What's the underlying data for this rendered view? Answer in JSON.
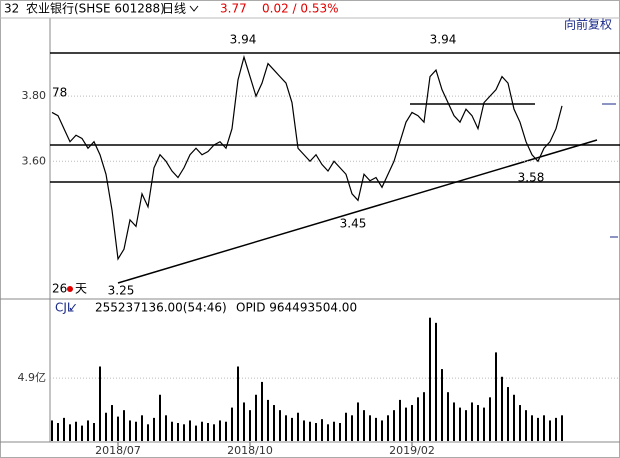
{
  "header": {
    "code": "32",
    "name": "农业银行(SHSE 601288)",
    "period": "日线",
    "price": "3.77",
    "change": "0.02 / 0.53%",
    "adjust": "向前复权"
  },
  "chart_data": [
    {
      "type": "line",
      "color": "#000000",
      "categories": [
        null,
        null,
        null,
        null,
        null,
        null,
        null,
        null,
        null,
        null,
        null,
        "2018/07",
        null,
        null,
        null,
        null,
        null,
        null,
        null,
        null,
        null,
        null,
        null,
        null,
        null,
        null,
        null,
        null,
        null,
        null,
        null,
        null,
        null,
        "2018/10",
        null,
        null,
        null,
        null,
        null,
        null,
        null,
        null,
        null,
        null,
        null,
        null,
        null,
        null,
        null,
        null,
        null,
        null,
        null,
        null,
        null,
        null,
        null,
        null,
        null,
        null,
        "2019/02",
        null,
        null,
        null,
        null,
        null,
        null,
        null,
        null,
        null,
        null,
        null,
        null,
        null,
        null,
        null,
        null,
        null,
        null,
        null,
        null,
        null,
        null,
        null,
        null,
        null
      ],
      "values": [
        3.75,
        3.74,
        3.7,
        3.66,
        3.68,
        3.67,
        3.64,
        3.66,
        3.62,
        3.56,
        3.45,
        3.3,
        3.33,
        3.42,
        3.4,
        3.5,
        3.46,
        3.58,
        3.62,
        3.6,
        3.57,
        3.55,
        3.58,
        3.62,
        3.64,
        3.62,
        3.63,
        3.65,
        3.66,
        3.64,
        3.7,
        3.85,
        3.92,
        3.86,
        3.8,
        3.84,
        3.9,
        3.88,
        3.86,
        3.84,
        3.78,
        3.64,
        3.62,
        3.6,
        3.62,
        3.59,
        3.57,
        3.6,
        3.58,
        3.56,
        3.5,
        3.48,
        3.56,
        3.54,
        3.55,
        3.52,
        3.56,
        3.6,
        3.66,
        3.72,
        3.75,
        3.74,
        3.72,
        3.86,
        3.88,
        3.82,
        3.78,
        3.74,
        3.72,
        3.76,
        3.74,
        3.7,
        3.78,
        3.8,
        3.82,
        3.86,
        3.84,
        3.76,
        3.72,
        3.66,
        3.62,
        3.6,
        3.64,
        3.66,
        3.7,
        3.77
      ],
      "ylim": [
        3.18,
        4.04
      ],
      "yticks": [
        {
          "value": 3.6,
          "label": "3.60"
        },
        {
          "value": 3.8,
          "label": "3.80"
        }
      ],
      "annotations": [
        "78",
        "3.94",
        "3.94",
        "3.45",
        "3.25",
        "3.58",
        "26",
        "天"
      ]
    },
    {
      "type": "bar",
      "color": "#000000",
      "title": "CJL",
      "subtitle": "255237136.00(54:46)",
      "note": "OPID 964493504.00",
      "values": [
        1.6,
        1.4,
        1.8,
        1.3,
        1.5,
        1.2,
        1.6,
        1.4,
        5.8,
        2.2,
        2.8,
        1.9,
        2.4,
        1.6,
        1.5,
        2.0,
        1.3,
        1.8,
        3.6,
        2.0,
        1.5,
        1.4,
        1.3,
        1.6,
        1.2,
        1.5,
        1.4,
        1.3,
        1.6,
        1.5,
        2.6,
        5.8,
        3.0,
        2.4,
        3.6,
        4.6,
        3.2,
        2.8,
        2.4,
        2.0,
        1.8,
        2.2,
        1.6,
        1.5,
        1.4,
        1.7,
        1.3,
        1.5,
        1.4,
        2.2,
        2.0,
        3.0,
        2.4,
        2.0,
        1.8,
        1.6,
        2.0,
        2.4,
        3.2,
        2.6,
        2.8,
        3.4,
        3.8,
        9.6,
        9.2,
        5.6,
        3.8,
        3.0,
        2.6,
        2.4,
        3.0,
        2.8,
        2.6,
        3.4,
        6.9,
        5.0,
        4.2,
        3.6,
        2.8,
        2.4,
        2.0,
        1.8,
        2.0,
        1.6,
        1.8,
        2.0
      ],
      "ylim": [
        0,
        10.2
      ],
      "yticks": [
        {
          "value": 4.9,
          "label": "4.9亿"
        }
      ]
    }
  ]
}
